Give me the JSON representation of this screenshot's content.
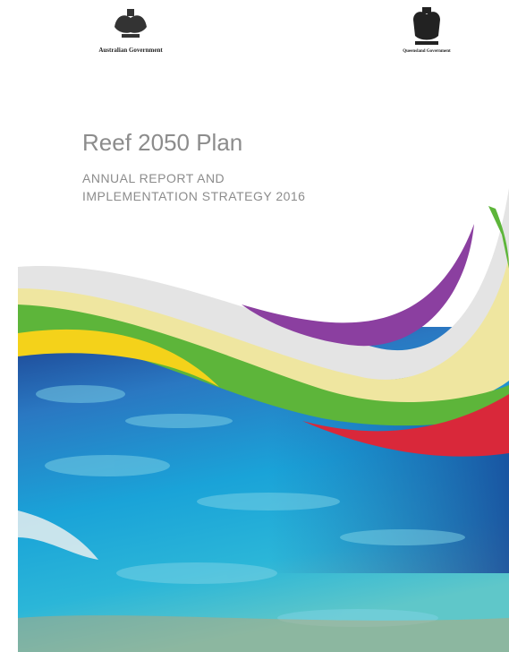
{
  "header": {
    "left_logo": "Australian Government",
    "right_logo": "Queensland Government"
  },
  "cover": {
    "title": "Reef 2050 Plan",
    "subtitle_lines": [
      "ANNUAL REPORT AND",
      "IMPLEMENTATION STRATEGY 2016"
    ]
  }
}
